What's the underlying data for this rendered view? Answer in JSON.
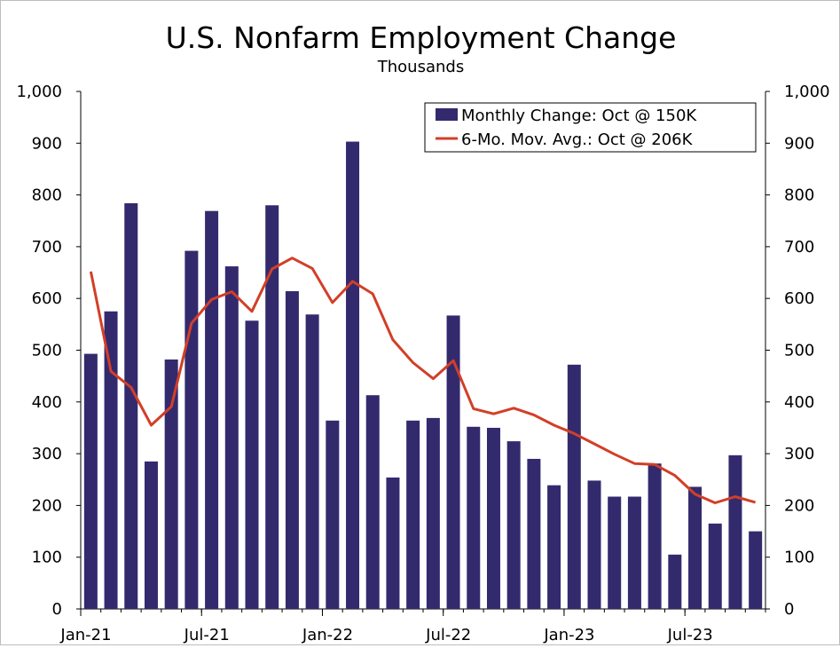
{
  "chart_data": {
    "type": "bar",
    "title": "U.S. Nonfarm Employment Change",
    "subtitle": "Thousands",
    "x": [
      "2021-01",
      "2021-02",
      "2021-03",
      "2021-04",
      "2021-05",
      "2021-06",
      "2021-07",
      "2021-08",
      "2021-09",
      "2021-10",
      "2021-11",
      "2021-12",
      "2022-01",
      "2022-02",
      "2022-03",
      "2022-04",
      "2022-05",
      "2022-06",
      "2022-07",
      "2022-08",
      "2022-09",
      "2022-10",
      "2022-11",
      "2022-12",
      "2023-01",
      "2023-02",
      "2023-03",
      "2023-04",
      "2023-05",
      "2023-06",
      "2023-07",
      "2023-08",
      "2023-09",
      "2023-10"
    ],
    "xtick_labels": [
      {
        "index": 0,
        "label": "Jan-21"
      },
      {
        "index": 6,
        "label": "Jul-21"
      },
      {
        "index": 12,
        "label": "Jan-22"
      },
      {
        "index": 18,
        "label": "Jul-22"
      },
      {
        "index": 24,
        "label": "Jan-23"
      },
      {
        "index": 30,
        "label": "Jul-23"
      }
    ],
    "ylim": [
      0,
      1000
    ],
    "yticks": [
      0,
      100,
      200,
      300,
      400,
      500,
      600,
      700,
      800,
      900,
      1000
    ],
    "ytick_labels": [
      "0",
      "100",
      "200",
      "300",
      "400",
      "500",
      "600",
      "700",
      "800",
      "900",
      "1,000"
    ],
    "legend_position": "top-right",
    "grid": false,
    "series": [
      {
        "name": "Monthly Change: Oct @ 150K",
        "type": "bar",
        "color": "#332a6e",
        "values": [
          493,
          575,
          784,
          285,
          482,
          692,
          769,
          662,
          557,
          780,
          614,
          569,
          364,
          903,
          413,
          254,
          364,
          369,
          567,
          352,
          350,
          324,
          290,
          239,
          472,
          248,
          217,
          217,
          281,
          105,
          236,
          165,
          297,
          150
        ]
      },
      {
        "name": "6-Mo. Mov. Avg.: Oct @ 206K",
        "type": "line",
        "color": "#d23f27",
        "values": [
          652,
          459,
          428,
          355,
          391,
          552,
          598,
          613,
          575,
          657,
          678,
          658,
          592,
          633,
          609,
          520,
          476,
          445,
          480,
          387,
          377,
          388,
          375,
          355,
          339,
          319,
          299,
          281,
          279,
          258,
          222,
          205,
          217,
          206
        ]
      }
    ]
  }
}
